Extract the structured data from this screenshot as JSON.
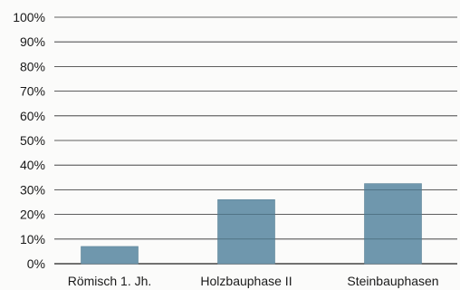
{
  "chart_data": {
    "type": "bar",
    "categories": [
      "Römisch 1. Jh.",
      "Holzbauphase II",
      "Steinbauphasen"
    ],
    "values": [
      7,
      26,
      32.5
    ],
    "ylim": [
      0,
      100
    ],
    "yticks": [
      0,
      10,
      20,
      30,
      40,
      50,
      60,
      70,
      80,
      90,
      100
    ],
    "ytick_labels": [
      "0%",
      "10%",
      "20%",
      "30%",
      "40%",
      "50%",
      "60%",
      "70%",
      "80%",
      "90%",
      "100%"
    ],
    "grid": true,
    "title": "",
    "xlabel": "",
    "ylabel": "",
    "colors": {
      "bar": "#6f97ad",
      "bar_edge": "#5a8297",
      "grid": "#2b2b2b"
    }
  }
}
